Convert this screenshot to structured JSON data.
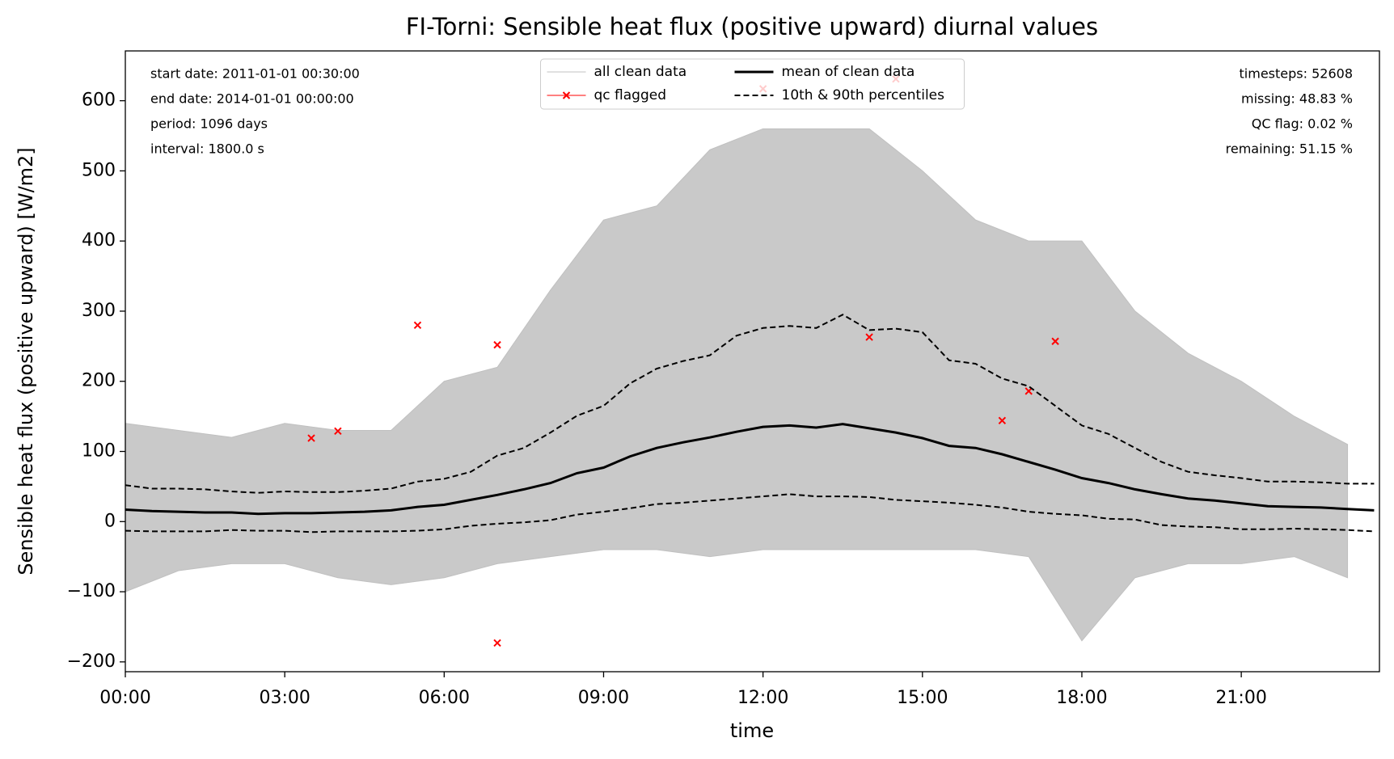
{
  "chart_data": {
    "type": "line",
    "title": "FI-Torni: Sensible heat flux (positive upward) diurnal values",
    "xlabel": "time",
    "ylabel": "Sensible heat flux (positive upward) [W/m2]",
    "x": [
      0,
      0.5,
      1,
      1.5,
      2,
      2.5,
      3,
      3.5,
      4,
      4.5,
      5,
      5.5,
      6,
      6.5,
      7,
      7.5,
      8,
      8.5,
      9,
      9.5,
      10,
      10.5,
      11,
      11.5,
      12,
      12.5,
      13,
      13.5,
      14,
      14.5,
      15,
      15.5,
      16,
      16.5,
      17,
      17.5,
      18,
      18.5,
      19,
      19.5,
      20,
      20.5,
      21,
      21.5,
      22,
      22.5,
      23,
      23.5
    ],
    "xlim": [
      0,
      23.6
    ],
    "xticks": [
      {
        "value": 0,
        "label": "00:00"
      },
      {
        "value": 3,
        "label": "03:00"
      },
      {
        "value": 6,
        "label": "06:00"
      },
      {
        "value": 9,
        "label": "09:00"
      },
      {
        "value": 12,
        "label": "12:00"
      },
      {
        "value": 15,
        "label": "15:00"
      },
      {
        "value": 18,
        "label": "18:00"
      },
      {
        "value": 21,
        "label": "21:00"
      }
    ],
    "ylim": [
      -214,
      671
    ],
    "yticks": [
      {
        "value": -200,
        "label": "−200"
      },
      {
        "value": -100,
        "label": "−100"
      },
      0,
      100,
      200,
      300,
      400,
      500,
      600
    ],
    "series": [
      {
        "name": "all clean data",
        "color": "#c0c0c0",
        "style": "band",
        "x": [
          0,
          1,
          2,
          3,
          4,
          5,
          6,
          7,
          8,
          9,
          10,
          11,
          12,
          13,
          14,
          15,
          16,
          17,
          18,
          19,
          20,
          21,
          22,
          23
        ],
        "values": [
          140,
          130,
          120,
          140,
          130,
          130,
          200,
          220,
          330,
          430,
          450,
          530,
          560,
          560,
          560,
          500,
          430,
          400,
          400,
          300,
          240,
          200,
          150,
          110
        ],
        "lower": [
          -100,
          -70,
          -60,
          -60,
          -80,
          -90,
          -80,
          -60,
          -50,
          -40,
          -40,
          -50,
          -40,
          -40,
          -40,
          -40,
          -40,
          -50,
          -170,
          -80,
          -60,
          -60,
          -50,
          -80
        ]
      },
      {
        "name": "qc flagged",
        "color": "#ff0000",
        "style": "marker",
        "x": [
          3.5,
          4,
          5.5,
          7,
          7,
          12,
          14,
          14.5,
          16.5,
          17,
          17.5
        ],
        "values": [
          119,
          129,
          280,
          252,
          -173,
          617,
          263,
          631,
          144,
          186,
          257
        ]
      },
      {
        "name": "mean of clean data",
        "color": "#000000",
        "style": "solid",
        "values": [
          17,
          15,
          14,
          13,
          13,
          11,
          12,
          12,
          13,
          14,
          16,
          21,
          24,
          31,
          38,
          46,
          55,
          69,
          77,
          93,
          105,
          113,
          120,
          128,
          135,
          137,
          134,
          139,
          133,
          127,
          119,
          108,
          105,
          96,
          85,
          74,
          62,
          55,
          46,
          39,
          33,
          30,
          26,
          22,
          21,
          20,
          18,
          16
        ]
      },
      {
        "name": "10th & 90th percentiles",
        "color": "#000000",
        "style": "dashed",
        "values": [
          52,
          47,
          47,
          46,
          43,
          41,
          43,
          42,
          42,
          44,
          47,
          57,
          61,
          71,
          94,
          105,
          127,
          151,
          165,
          197,
          218,
          229,
          237,
          265,
          276,
          279,
          276,
          295,
          273,
          275,
          270,
          230,
          225,
          204,
          193,
          165,
          137,
          125,
          105,
          85,
          71,
          66,
          62,
          57,
          57,
          56,
          54,
          54
        ],
        "lower": [
          -13,
          -14,
          -14,
          -14,
          -12,
          -13,
          -13,
          -15,
          -14,
          -14,
          -14,
          -13,
          -11,
          -6,
          -3,
          -1,
          2,
          10,
          14,
          19,
          25,
          27,
          30,
          33,
          36,
          39,
          36,
          36,
          35,
          31,
          29,
          27,
          24,
          20,
          14,
          11,
          9,
          4,
          3,
          -5,
          -7,
          -8,
          -11,
          -11,
          -10,
          -11,
          -12,
          -14
        ]
      }
    ],
    "annotations_left": [
      "start date: 2011-01-01 00:30:00",
      "end date: 2014-01-01 00:00:00",
      "period: 1096 days",
      "interval: 1800.0 s"
    ],
    "annotations_right": [
      "timesteps: 52608",
      "missing: 48.83 %",
      "QC flag: 0.02 %",
      "remaining: 51.15 %"
    ],
    "legend": "upper center"
  }
}
